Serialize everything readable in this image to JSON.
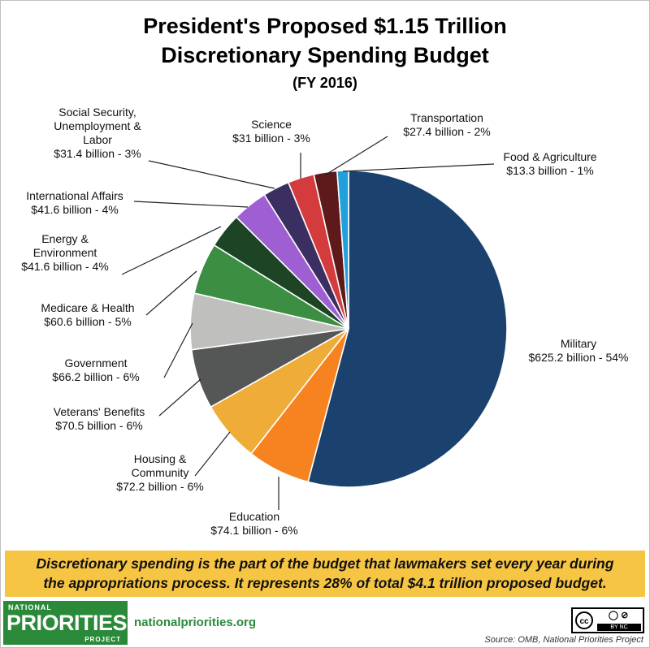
{
  "chart_data": {
    "type": "pie",
    "title": "President's Proposed $1.15 Trillion",
    "title_line2": "Discretionary Spending Budget",
    "subtitle": "(FY 2016)",
    "unit": "billion",
    "slices": [
      {
        "name": "Military",
        "value": 625.2,
        "label": "$625.2 billion - 54%",
        "color": "#1b426e"
      },
      {
        "name": "Education",
        "value": 74.1,
        "label": "$74.1 billion - 6%",
        "color": "#f6831f"
      },
      {
        "name": "Housing & Community",
        "value": 72.2,
        "label": "$72.2 billion - 6%",
        "color": "#f0ac38"
      },
      {
        "name": "Veterans' Benefits",
        "value": 70.5,
        "label": "$70.5 billion - 6%",
        "color": "#555756"
      },
      {
        "name": "Government",
        "value": 66.2,
        "label": "$66.2 billion - 6%",
        "color": "#bfbfbd"
      },
      {
        "name": "Medicare & Health",
        "value": 60.6,
        "label": "$60.6 billion - 5%",
        "color": "#3c8e42"
      },
      {
        "name": "Energy & Environment",
        "value": 41.6,
        "label": "$41.6 billion - 4%",
        "color": "#1d4424"
      },
      {
        "name": "International Affairs",
        "value": 41.6,
        "label": "$41.6 billion - 4%",
        "color": "#9d5fd2"
      },
      {
        "name": "Social Security, Unemployment & Labor",
        "value": 31.4,
        "label": "$31.4 billion - 3%",
        "color": "#3b2e61"
      },
      {
        "name": "Science",
        "value": 31,
        "label": "$31 billion - 3%",
        "color": "#d43b3d"
      },
      {
        "name": "Transportation",
        "value": 27.4,
        "label": "$27.4 billion - 2%",
        "color": "#5e1a1a"
      },
      {
        "name": "Food & Agriculture",
        "value": 13.3,
        "label": "$13.3 billion - 1%",
        "color": "#21a0db"
      }
    ]
  },
  "banner": {
    "line1": "Discretionary spending is the part of the budget that lawmakers set every year during",
    "line2": "the appropriations process. It represents 28% of total $4.1 trillion proposed budget."
  },
  "footer": {
    "logo_top": "NATIONAL",
    "logo_main": "PRIORITIES",
    "logo_bottom": "PROJECT",
    "site": "nationalpriorities.org",
    "license_badge": "cc",
    "license_by": "BY  NC",
    "source": "Source: OMB, National Priorities Project"
  }
}
